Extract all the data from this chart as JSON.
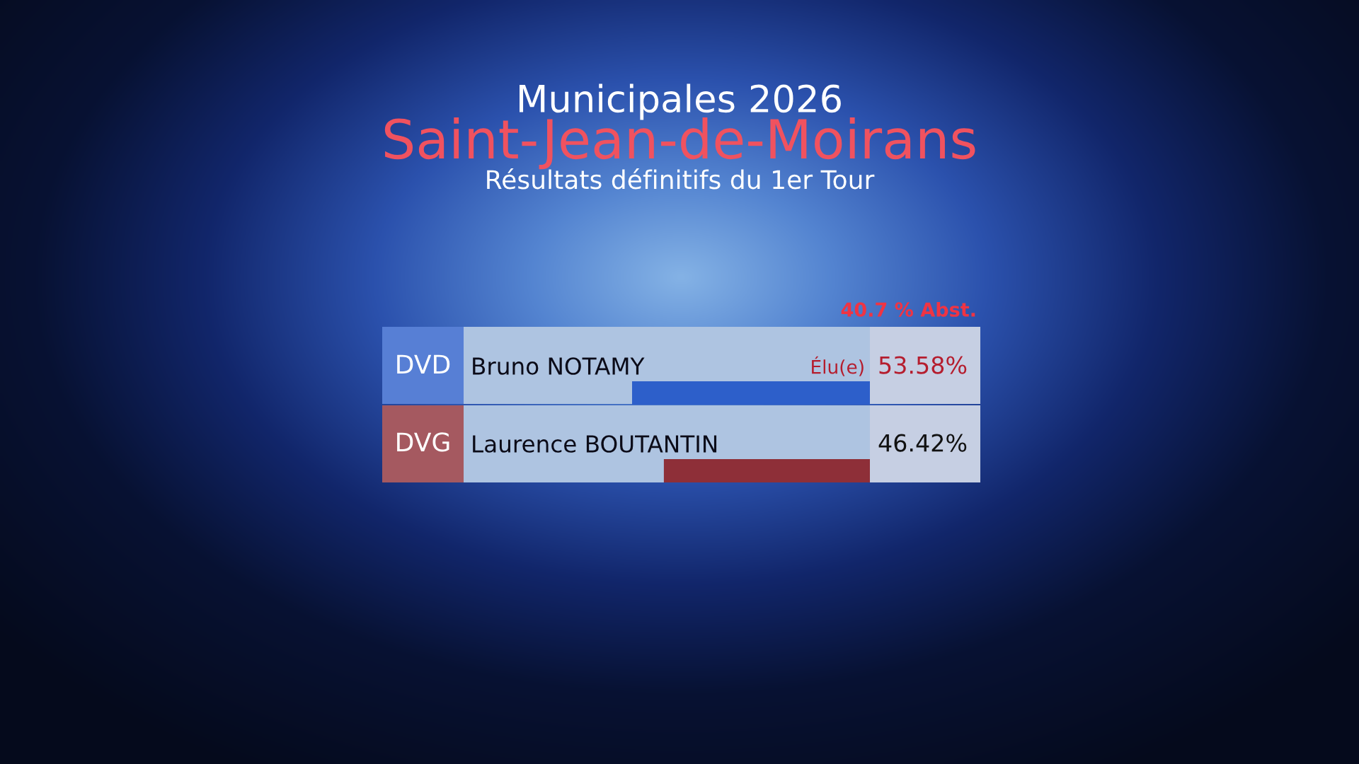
{
  "chart_data": {
    "type": "bar",
    "orientation": "horizontal",
    "title": "Municipales 2026",
    "subtitle": "Saint-Jean-de-Moirans",
    "categories": [
      "Bruno NOTAMY",
      "Laurence BOUTANTIN"
    ],
    "y2_categories": [
      "DVD",
      "DVG"
    ],
    "values": [
      53.58,
      46.42
    ],
    "colors": [
      "#2d5fca",
      "#8e2f38"
    ],
    "value_labels": [
      "53.58%",
      "46.42%"
    ],
    "tick_labels": "y",
    "annotations": [
      "Résultats définitifs du 1er Tour",
      "40.7 % Abst.",
      "Élu(e)"
    ]
  }
}
